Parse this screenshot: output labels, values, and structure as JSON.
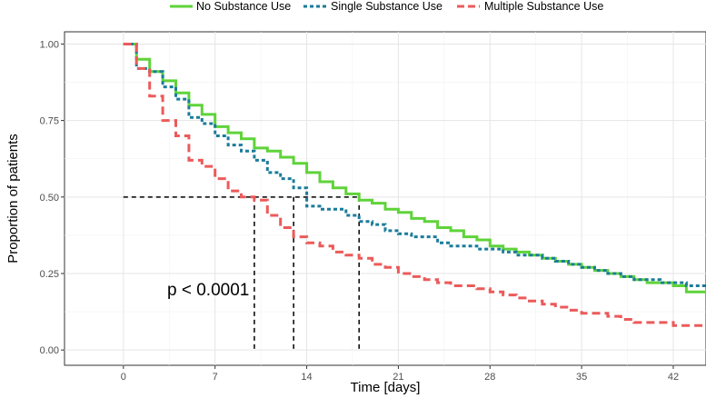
{
  "chart_data": {
    "type": "line",
    "subtype": "kaplan-meier-step",
    "title": "",
    "xlabel": "Time [days]",
    "ylabel": "Proportion of patients",
    "xlim": [
      -4.5,
      44.5
    ],
    "ylim": [
      -0.05,
      1.04
    ],
    "x_ticks": [
      0,
      7,
      14,
      21,
      28,
      35,
      42
    ],
    "x_tick_labels": [
      "0",
      "7",
      "14",
      "21",
      "28",
      "35",
      "42"
    ],
    "y_ticks": [
      0,
      0.25,
      0.5,
      0.75,
      1.0
    ],
    "y_tick_labels": [
      "0.00",
      "0.25",
      "0.50",
      "0.75",
      "1.00"
    ],
    "grid": true,
    "legend_position": "top",
    "annotation": "p < 0.0001",
    "median_survival": {
      "y": 0.5,
      "x_values": [
        10,
        13,
        18
      ]
    },
    "series": [
      {
        "name": "No Substance Use",
        "color": "#5fd33a",
        "dash": "solid",
        "x": [
          0,
          1,
          2,
          3,
          4,
          5,
          6,
          7,
          8,
          9,
          10,
          11,
          12,
          13,
          14,
          15,
          16,
          17,
          18,
          19,
          20,
          21,
          22,
          23,
          24,
          25,
          26,
          27,
          28,
          29,
          30,
          31,
          32,
          33,
          34,
          35,
          36,
          37,
          38,
          39,
          40,
          41,
          42,
          43,
          44.5
        ],
        "y": [
          1.0,
          0.95,
          0.91,
          0.88,
          0.84,
          0.8,
          0.77,
          0.73,
          0.71,
          0.69,
          0.66,
          0.65,
          0.63,
          0.61,
          0.58,
          0.55,
          0.53,
          0.51,
          0.49,
          0.48,
          0.46,
          0.45,
          0.43,
          0.42,
          0.4,
          0.39,
          0.37,
          0.36,
          0.34,
          0.33,
          0.32,
          0.31,
          0.3,
          0.29,
          0.28,
          0.27,
          0.26,
          0.25,
          0.24,
          0.23,
          0.22,
          0.22,
          0.21,
          0.19,
          0.19
        ]
      },
      {
        "name": "Single Substance Use",
        "color": "#1b7c9a",
        "dash": "dotted",
        "x": [
          0,
          1,
          2,
          3,
          4,
          5,
          6,
          7,
          8,
          9,
          10,
          11,
          12,
          13,
          14,
          15,
          16,
          17,
          18,
          19,
          20,
          21,
          22,
          23,
          24,
          25,
          26,
          27,
          28,
          29,
          30,
          31,
          32,
          33,
          34,
          35,
          36,
          37,
          38,
          39,
          40,
          41,
          42,
          43,
          44.5
        ],
        "y": [
          1.0,
          0.92,
          0.91,
          0.86,
          0.82,
          0.76,
          0.74,
          0.7,
          0.67,
          0.65,
          0.62,
          0.58,
          0.56,
          0.53,
          0.47,
          0.46,
          0.46,
          0.44,
          0.42,
          0.41,
          0.39,
          0.38,
          0.37,
          0.37,
          0.35,
          0.34,
          0.34,
          0.33,
          0.33,
          0.32,
          0.31,
          0.31,
          0.3,
          0.29,
          0.28,
          0.27,
          0.26,
          0.25,
          0.24,
          0.23,
          0.23,
          0.22,
          0.22,
          0.21,
          0.21
        ]
      },
      {
        "name": "Multiple Substance Use",
        "color": "#ec5a5a",
        "dash": "dashed",
        "x": [
          0,
          1,
          2,
          3,
          4,
          5,
          6,
          7,
          8,
          9,
          10,
          11,
          12,
          13,
          14,
          15,
          16,
          17,
          18,
          19,
          20,
          21,
          22,
          23,
          24,
          25,
          26,
          27,
          28,
          29,
          30,
          31,
          32,
          33,
          34,
          35,
          36,
          37,
          38,
          39,
          40,
          41,
          42,
          43,
          44.5
        ],
        "y": [
          1.0,
          0.92,
          0.83,
          0.75,
          0.7,
          0.62,
          0.6,
          0.56,
          0.52,
          0.5,
          0.49,
          0.44,
          0.4,
          0.37,
          0.35,
          0.34,
          0.32,
          0.31,
          0.3,
          0.28,
          0.27,
          0.25,
          0.24,
          0.23,
          0.22,
          0.21,
          0.21,
          0.2,
          0.19,
          0.18,
          0.17,
          0.16,
          0.15,
          0.14,
          0.13,
          0.12,
          0.12,
          0.11,
          0.1,
          0.09,
          0.09,
          0.09,
          0.08,
          0.08,
          0.08
        ]
      }
    ]
  }
}
